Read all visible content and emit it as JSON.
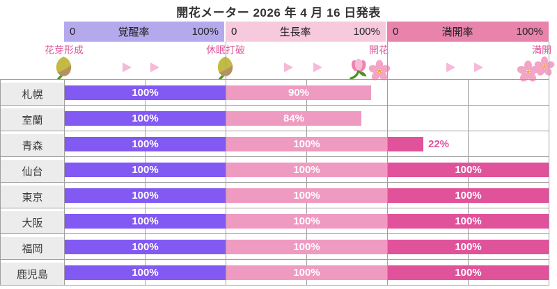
{
  "title": "開花メーター 2026 年 4 月 16 日発表",
  "header": {
    "scales": [
      {
        "name": "覚醒率",
        "min": "0",
        "max": "100%",
        "bg": "#b5a9ee"
      },
      {
        "name": "生長率",
        "min": "0",
        "max": "100%",
        "bg": "#f6c9dc"
      },
      {
        "name": "満開率",
        "min": "0",
        "max": "100%",
        "bg": "#e884ab"
      }
    ],
    "stages": [
      {
        "label": "花芽形成",
        "icon": "flower-bud-icon"
      },
      {
        "label": "休眠打破",
        "icon": "flower-bud-icon"
      },
      {
        "label": "開花",
        "icon": "tulip-and-cherry-blossom-icon"
      },
      {
        "label": "満開",
        "icon": "double-cherry-blossom-icon"
      }
    ]
  },
  "colors": {
    "awakening_bar": "#8259f2",
    "growth_bar": "#ef9ac1",
    "bloom_bar": "#e0529a",
    "stage_label_text": "#e0569e",
    "arrow": "#f6b9d6",
    "grid_line": "#9f9f9f",
    "city_cell_bg": "#ececec",
    "bar_label_inside": "#ffffff"
  },
  "chart_data": {
    "type": "bar",
    "orientation": "horizontal",
    "title": "開花メーター 2026年4月16日発表",
    "categories": [
      "札幌",
      "室蘭",
      "青森",
      "仙台",
      "東京",
      "大阪",
      "福岡",
      "鹿児島"
    ],
    "series": [
      {
        "name": "覚醒率",
        "values": [
          100,
          100,
          100,
          100,
          100,
          100,
          100,
          100
        ]
      },
      {
        "name": "生長率",
        "values": [
          90,
          84,
          100,
          100,
          100,
          100,
          100,
          100
        ]
      },
      {
        "name": "満開率",
        "values": [
          null,
          null,
          22,
          100,
          100,
          100,
          100,
          100
        ]
      }
    ],
    "value_suffix": "%",
    "xlim": [
      0,
      100
    ],
    "grid": true,
    "legend_position": "none"
  }
}
